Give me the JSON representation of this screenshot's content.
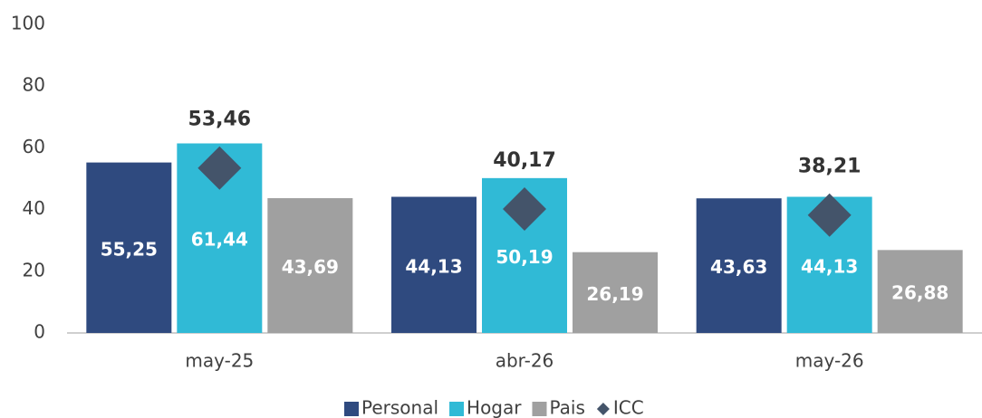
{
  "chart_data": {
    "type": "bar",
    "categories": [
      "may-25",
      "abr-26",
      "may-26"
    ],
    "series": [
      {
        "name": "Personal",
        "color": "#2f4a7f",
        "values": [
          55.25,
          44.13,
          43.63
        ],
        "value_labels": [
          "55,25",
          "44,13",
          "43,63"
        ]
      },
      {
        "name": "Hogar",
        "color": "#30bad6",
        "values": [
          61.44,
          50.19,
          44.13
        ],
        "value_labels": [
          "61,44",
          "50,19",
          "44,13"
        ]
      },
      {
        "name": "Pais",
        "color": "#a0a0a0",
        "values": [
          43.69,
          26.19,
          26.88
        ],
        "value_labels": [
          "43,69",
          "26,19",
          "26,88"
        ]
      },
      {
        "name": "ICC",
        "color": "#44546a",
        "marker": "diamond",
        "values": [
          53.46,
          40.17,
          38.21
        ],
        "value_labels": [
          "53,46",
          "40,17",
          "38,21"
        ]
      }
    ],
    "ylim": [
      0,
      100
    ],
    "yticks": [
      0,
      20,
      40,
      60,
      80,
      100
    ],
    "grid": false,
    "legend": "bottom"
  }
}
